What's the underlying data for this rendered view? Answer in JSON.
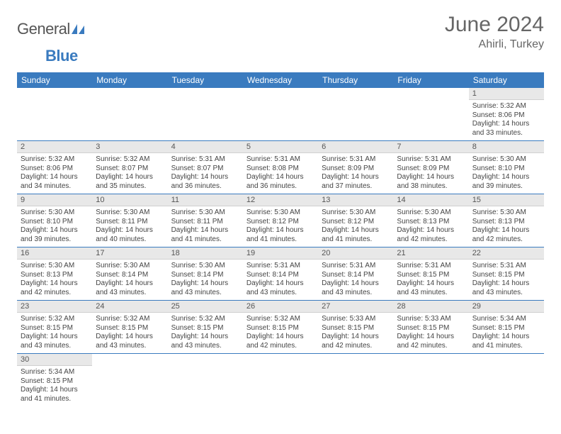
{
  "logo": {
    "text_gray": "General",
    "text_blue": "Blue"
  },
  "title": "June 2024",
  "location": "Ahirli, Turkey",
  "columns": [
    "Sunday",
    "Monday",
    "Tuesday",
    "Wednesday",
    "Thursday",
    "Friday",
    "Saturday"
  ],
  "colors": {
    "header_bg": "#3a7bbf",
    "header_fg": "#ffffff",
    "daynum_bg": "#e8e8e8",
    "row_divider": "#3a7bbf",
    "text": "#444444",
    "title_color": "#666666"
  },
  "weeks": [
    [
      null,
      null,
      null,
      null,
      null,
      null,
      {
        "n": "1",
        "sr": "5:32 AM",
        "ss": "8:06 PM",
        "dl": "14 hours and 33 minutes."
      }
    ],
    [
      {
        "n": "2",
        "sr": "5:32 AM",
        "ss": "8:06 PM",
        "dl": "14 hours and 34 minutes."
      },
      {
        "n": "3",
        "sr": "5:32 AM",
        "ss": "8:07 PM",
        "dl": "14 hours and 35 minutes."
      },
      {
        "n": "4",
        "sr": "5:31 AM",
        "ss": "8:07 PM",
        "dl": "14 hours and 36 minutes."
      },
      {
        "n": "5",
        "sr": "5:31 AM",
        "ss": "8:08 PM",
        "dl": "14 hours and 36 minutes."
      },
      {
        "n": "6",
        "sr": "5:31 AM",
        "ss": "8:09 PM",
        "dl": "14 hours and 37 minutes."
      },
      {
        "n": "7",
        "sr": "5:31 AM",
        "ss": "8:09 PM",
        "dl": "14 hours and 38 minutes."
      },
      {
        "n": "8",
        "sr": "5:30 AM",
        "ss": "8:10 PM",
        "dl": "14 hours and 39 minutes."
      }
    ],
    [
      {
        "n": "9",
        "sr": "5:30 AM",
        "ss": "8:10 PM",
        "dl": "14 hours and 39 minutes."
      },
      {
        "n": "10",
        "sr": "5:30 AM",
        "ss": "8:11 PM",
        "dl": "14 hours and 40 minutes."
      },
      {
        "n": "11",
        "sr": "5:30 AM",
        "ss": "8:11 PM",
        "dl": "14 hours and 41 minutes."
      },
      {
        "n": "12",
        "sr": "5:30 AM",
        "ss": "8:12 PM",
        "dl": "14 hours and 41 minutes."
      },
      {
        "n": "13",
        "sr": "5:30 AM",
        "ss": "8:12 PM",
        "dl": "14 hours and 41 minutes."
      },
      {
        "n": "14",
        "sr": "5:30 AM",
        "ss": "8:13 PM",
        "dl": "14 hours and 42 minutes."
      },
      {
        "n": "15",
        "sr": "5:30 AM",
        "ss": "8:13 PM",
        "dl": "14 hours and 42 minutes."
      }
    ],
    [
      {
        "n": "16",
        "sr": "5:30 AM",
        "ss": "8:13 PM",
        "dl": "14 hours and 42 minutes."
      },
      {
        "n": "17",
        "sr": "5:30 AM",
        "ss": "8:14 PM",
        "dl": "14 hours and 43 minutes."
      },
      {
        "n": "18",
        "sr": "5:30 AM",
        "ss": "8:14 PM",
        "dl": "14 hours and 43 minutes."
      },
      {
        "n": "19",
        "sr": "5:31 AM",
        "ss": "8:14 PM",
        "dl": "14 hours and 43 minutes."
      },
      {
        "n": "20",
        "sr": "5:31 AM",
        "ss": "8:14 PM",
        "dl": "14 hours and 43 minutes."
      },
      {
        "n": "21",
        "sr": "5:31 AM",
        "ss": "8:15 PM",
        "dl": "14 hours and 43 minutes."
      },
      {
        "n": "22",
        "sr": "5:31 AM",
        "ss": "8:15 PM",
        "dl": "14 hours and 43 minutes."
      }
    ],
    [
      {
        "n": "23",
        "sr": "5:32 AM",
        "ss": "8:15 PM",
        "dl": "14 hours and 43 minutes."
      },
      {
        "n": "24",
        "sr": "5:32 AM",
        "ss": "8:15 PM",
        "dl": "14 hours and 43 minutes."
      },
      {
        "n": "25",
        "sr": "5:32 AM",
        "ss": "8:15 PM",
        "dl": "14 hours and 43 minutes."
      },
      {
        "n": "26",
        "sr": "5:32 AM",
        "ss": "8:15 PM",
        "dl": "14 hours and 42 minutes."
      },
      {
        "n": "27",
        "sr": "5:33 AM",
        "ss": "8:15 PM",
        "dl": "14 hours and 42 minutes."
      },
      {
        "n": "28",
        "sr": "5:33 AM",
        "ss": "8:15 PM",
        "dl": "14 hours and 42 minutes."
      },
      {
        "n": "29",
        "sr": "5:34 AM",
        "ss": "8:15 PM",
        "dl": "14 hours and 41 minutes."
      }
    ],
    [
      {
        "n": "30",
        "sr": "5:34 AM",
        "ss": "8:15 PM",
        "dl": "14 hours and 41 minutes."
      },
      null,
      null,
      null,
      null,
      null,
      null
    ]
  ],
  "labels": {
    "sunrise": "Sunrise:",
    "sunset": "Sunset:",
    "daylight": "Daylight:"
  }
}
